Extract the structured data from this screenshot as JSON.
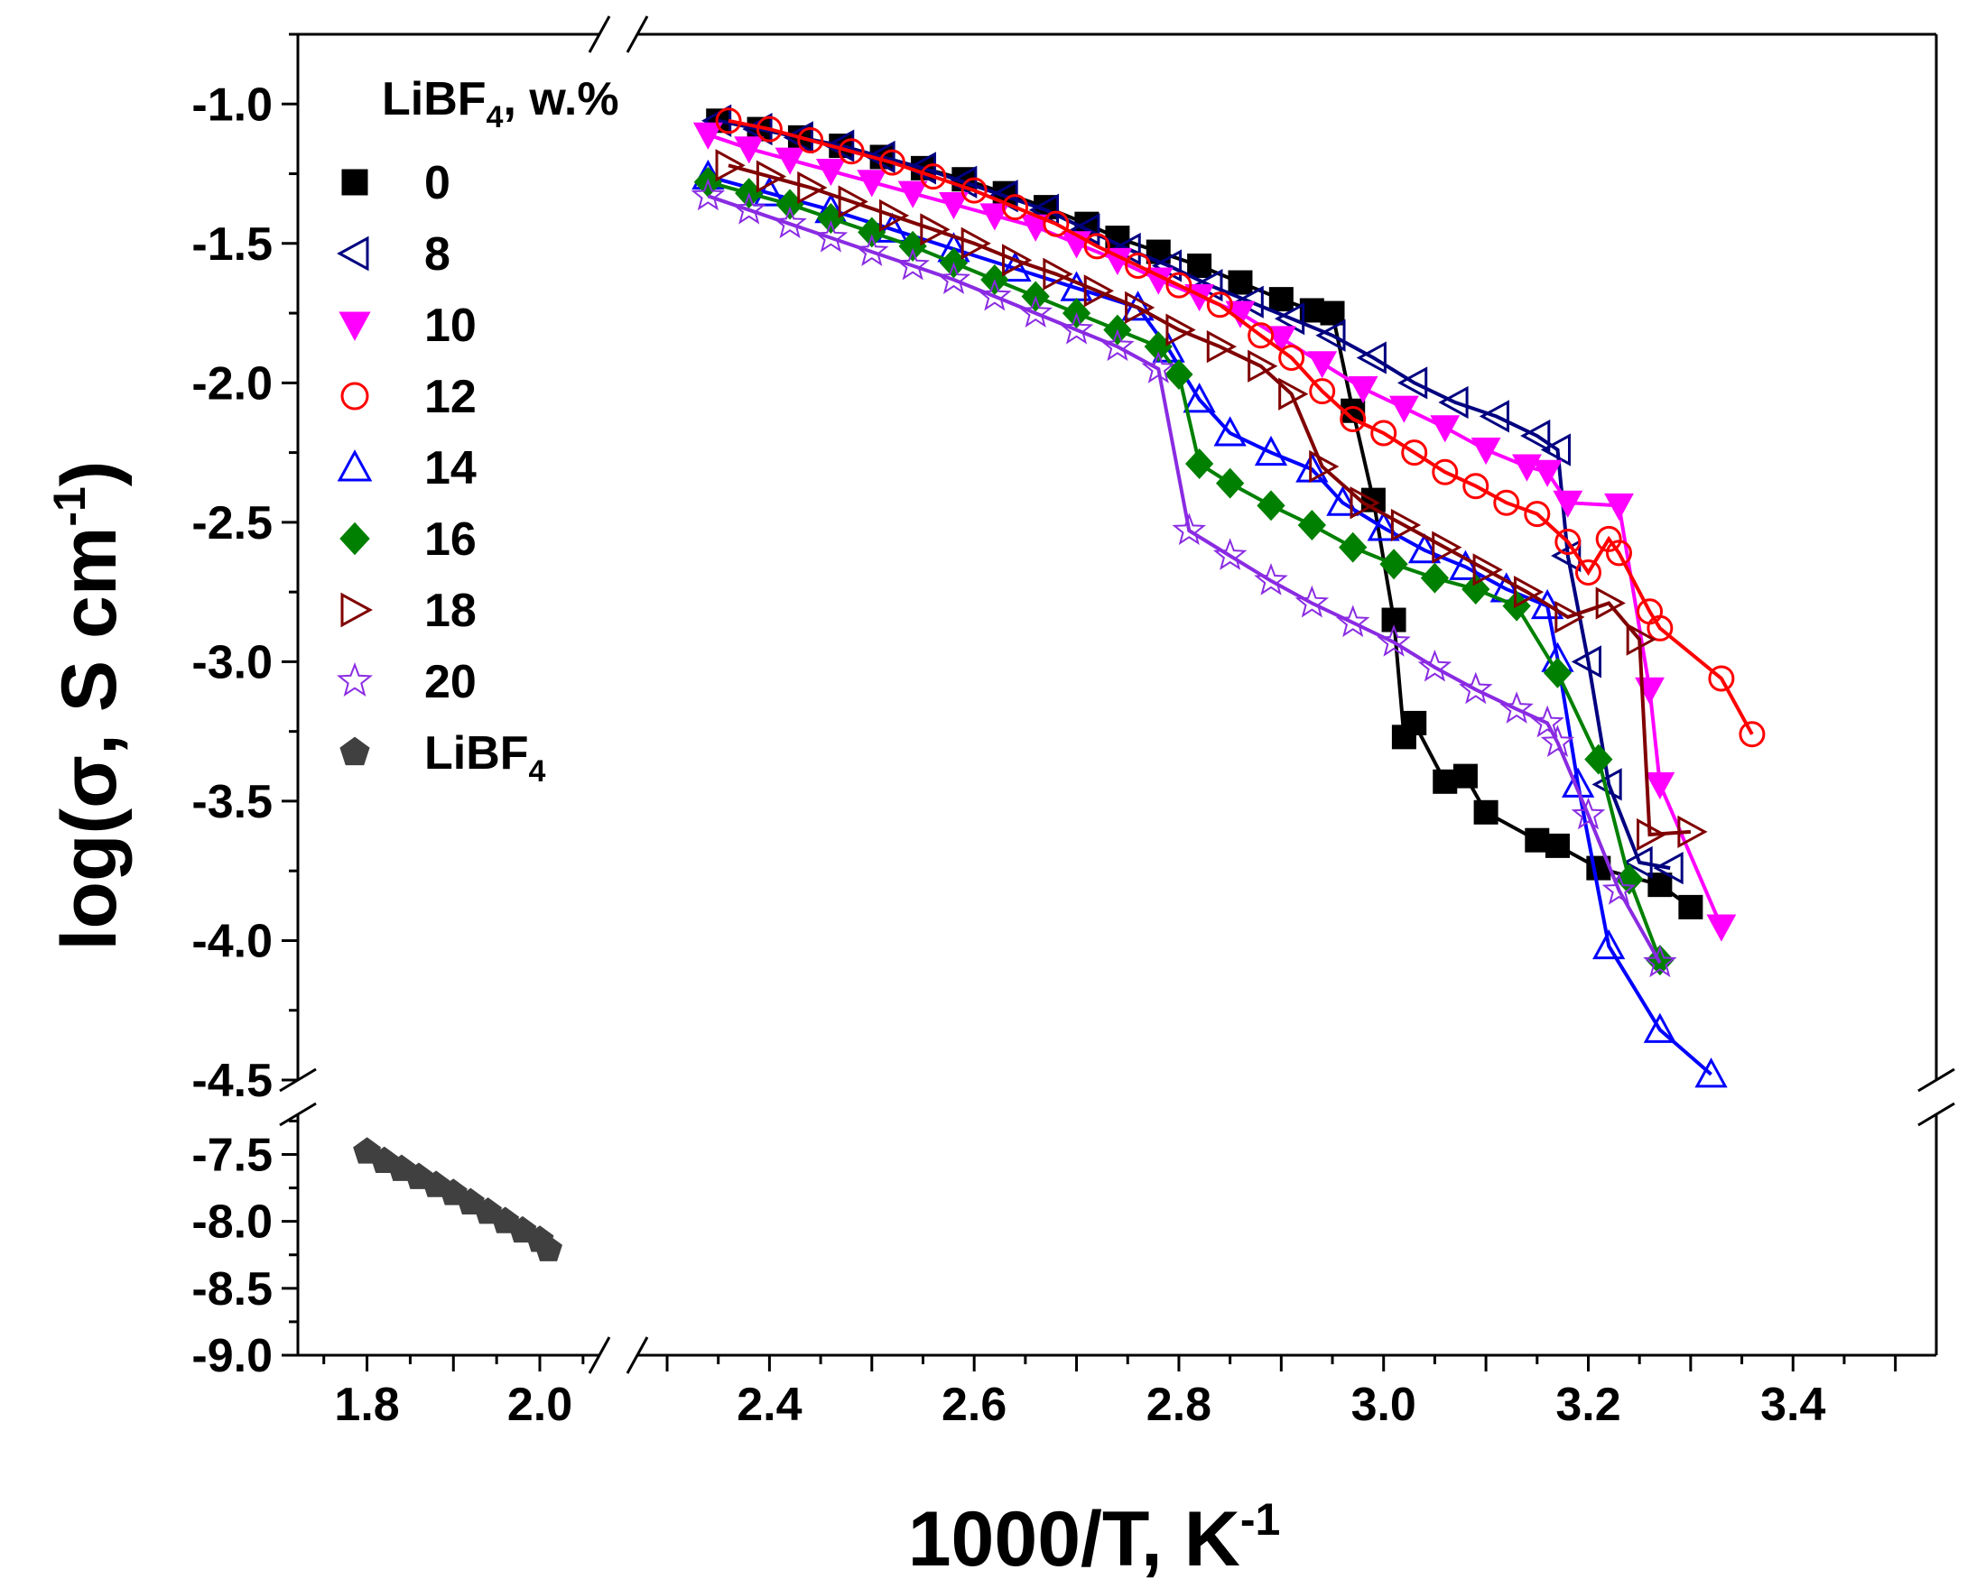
{
  "chart_data": {
    "type": "line",
    "title": "",
    "xlabel": "1000/T, K",
    "xlabel_sup": "-1",
    "ylabel": "log(σ, S cm",
    "ylabel_sup": "-1",
    "ylabel_end": ")",
    "legend_title": "LiBF",
    "legend_title_sub": "4",
    "legend_title_end": ", w.%",
    "legend_position": "top-left",
    "x_axis_break": [
      2.07,
      2.27
    ],
    "y_axis_break": [
      -7.2,
      -4.5
    ],
    "xlim_left": [
      1.72,
      2.07
    ],
    "xlim_right": [
      2.27,
      3.54
    ],
    "ylim_upper": [
      -4.5,
      -0.75
    ],
    "ylim_lower": [
      -9.0,
      -7.2
    ],
    "x_ticks_left": [
      "1.8",
      "2.0"
    ],
    "x_ticks_right": [
      "2.4",
      "2.6",
      "2.8",
      "3.0",
      "3.2",
      "3.4"
    ],
    "y_ticks_upper": [
      "-1.0",
      "-1.5",
      "-2.0",
      "-2.5",
      "-3.0",
      "-3.5",
      "-4.0",
      "-4.5"
    ],
    "y_ticks_lower": [
      "-7.5",
      "-8.0",
      "-8.5",
      "-9.0"
    ],
    "series": [
      {
        "name": "0",
        "color": "#000000",
        "marker": "square",
        "filled": true,
        "points": [
          [
            2.35,
            -1.06
          ],
          [
            2.39,
            -1.09
          ],
          [
            2.43,
            -1.12
          ],
          [
            2.47,
            -1.15
          ],
          [
            2.51,
            -1.19
          ],
          [
            2.55,
            -1.23
          ],
          [
            2.59,
            -1.27
          ],
          [
            2.63,
            -1.32
          ],
          [
            2.67,
            -1.37
          ],
          [
            2.71,
            -1.43
          ],
          [
            2.74,
            -1.48
          ],
          [
            2.78,
            -1.53
          ],
          [
            2.82,
            -1.58
          ],
          [
            2.86,
            -1.64
          ],
          [
            2.9,
            -1.7
          ],
          [
            2.93,
            -1.74
          ],
          [
            2.95,
            -1.75
          ],
          [
            2.97,
            -2.1
          ],
          [
            2.99,
            -2.42
          ],
          [
            3.01,
            -2.85
          ],
          [
            3.02,
            -3.27
          ],
          [
            3.03,
            -3.22
          ],
          [
            3.06,
            -3.43
          ],
          [
            3.08,
            -3.41
          ],
          [
            3.1,
            -3.54
          ],
          [
            3.15,
            -3.64
          ],
          [
            3.17,
            -3.66
          ],
          [
            3.21,
            -3.74
          ],
          [
            3.27,
            -3.8
          ],
          [
            3.3,
            -3.88
          ]
        ]
      },
      {
        "name": "8",
        "color": "#000080",
        "marker": "triangle-left",
        "filled": false,
        "points": [
          [
            2.35,
            -1.06
          ],
          [
            2.39,
            -1.09
          ],
          [
            2.43,
            -1.12
          ],
          [
            2.47,
            -1.15
          ],
          [
            2.51,
            -1.19
          ],
          [
            2.55,
            -1.23
          ],
          [
            2.59,
            -1.28
          ],
          [
            2.63,
            -1.33
          ],
          [
            2.67,
            -1.38
          ],
          [
            2.71,
            -1.45
          ],
          [
            2.75,
            -1.52
          ],
          [
            2.79,
            -1.58
          ],
          [
            2.83,
            -1.65
          ],
          [
            2.87,
            -1.71
          ],
          [
            2.91,
            -1.77
          ],
          [
            2.95,
            -1.83
          ],
          [
            2.99,
            -1.91
          ],
          [
            3.03,
            -2.0
          ],
          [
            3.07,
            -2.07
          ],
          [
            3.11,
            -2.12
          ],
          [
            3.15,
            -2.19
          ],
          [
            3.17,
            -2.24
          ],
          [
            3.18,
            -2.62
          ],
          [
            3.2,
            -3.0
          ],
          [
            3.22,
            -3.44
          ],
          [
            3.25,
            -3.72
          ],
          [
            3.28,
            -3.74
          ]
        ]
      },
      {
        "name": "10",
        "color": "#FF00FF",
        "marker": "triangle-down",
        "filled": true,
        "points": [
          [
            2.34,
            -1.11
          ],
          [
            2.38,
            -1.16
          ],
          [
            2.42,
            -1.2
          ],
          [
            2.46,
            -1.24
          ],
          [
            2.5,
            -1.28
          ],
          [
            2.54,
            -1.32
          ],
          [
            2.58,
            -1.36
          ],
          [
            2.62,
            -1.4
          ],
          [
            2.66,
            -1.44
          ],
          [
            2.7,
            -1.5
          ],
          [
            2.74,
            -1.56
          ],
          [
            2.78,
            -1.63
          ],
          [
            2.82,
            -1.69
          ],
          [
            2.86,
            -1.75
          ],
          [
            2.9,
            -1.84
          ],
          [
            2.94,
            -1.93
          ],
          [
            2.98,
            -2.02
          ],
          [
            3.02,
            -2.09
          ],
          [
            3.06,
            -2.16
          ],
          [
            3.1,
            -2.24
          ],
          [
            3.14,
            -2.3
          ],
          [
            3.16,
            -2.32
          ],
          [
            3.18,
            -2.43
          ],
          [
            3.23,
            -2.44
          ],
          [
            3.26,
            -3.1
          ],
          [
            3.27,
            -3.44
          ],
          [
            3.33,
            -3.95
          ]
        ]
      },
      {
        "name": "12",
        "color": "#FF0000",
        "marker": "circle",
        "filled": false,
        "points": [
          [
            2.36,
            -1.06
          ],
          [
            2.4,
            -1.09
          ],
          [
            2.44,
            -1.13
          ],
          [
            2.48,
            -1.17
          ],
          [
            2.52,
            -1.21
          ],
          [
            2.56,
            -1.26
          ],
          [
            2.6,
            -1.31
          ],
          [
            2.64,
            -1.37
          ],
          [
            2.68,
            -1.43
          ],
          [
            2.72,
            -1.51
          ],
          [
            2.76,
            -1.58
          ],
          [
            2.8,
            -1.65
          ],
          [
            2.84,
            -1.72
          ],
          [
            2.88,
            -1.83
          ],
          [
            2.91,
            -1.91
          ],
          [
            2.94,
            -2.03
          ],
          [
            2.97,
            -2.13
          ],
          [
            3.0,
            -2.18
          ],
          [
            3.03,
            -2.25
          ],
          [
            3.06,
            -2.32
          ],
          [
            3.09,
            -2.37
          ],
          [
            3.12,
            -2.43
          ],
          [
            3.15,
            -2.47
          ],
          [
            3.18,
            -2.57
          ],
          [
            3.2,
            -2.68
          ],
          [
            3.22,
            -2.56
          ],
          [
            3.23,
            -2.61
          ],
          [
            3.26,
            -2.82
          ],
          [
            3.27,
            -2.88
          ],
          [
            3.33,
            -3.06
          ],
          [
            3.36,
            -3.26
          ]
        ]
      },
      {
        "name": "14",
        "color": "#0000FF",
        "marker": "triangle-up",
        "filled": false,
        "points": [
          [
            2.34,
            -1.26
          ],
          [
            2.4,
            -1.32
          ],
          [
            2.46,
            -1.38
          ],
          [
            2.52,
            -1.45
          ],
          [
            2.58,
            -1.52
          ],
          [
            2.64,
            -1.59
          ],
          [
            2.7,
            -1.66
          ],
          [
            2.76,
            -1.73
          ],
          [
            2.79,
            -1.88
          ],
          [
            2.82,
            -2.06
          ],
          [
            2.85,
            -2.18
          ],
          [
            2.89,
            -2.25
          ],
          [
            2.93,
            -2.31
          ],
          [
            2.96,
            -2.43
          ],
          [
            3.0,
            -2.52
          ],
          [
            3.04,
            -2.6
          ],
          [
            3.08,
            -2.66
          ],
          [
            3.12,
            -2.74
          ],
          [
            3.16,
            -2.8
          ],
          [
            3.17,
            -2.99
          ],
          [
            3.19,
            -3.44
          ],
          [
            3.22,
            -4.02
          ],
          [
            3.27,
            -4.32
          ],
          [
            3.32,
            -4.48
          ]
        ]
      },
      {
        "name": "16",
        "color": "#008000",
        "marker": "diamond",
        "filled": true,
        "points": [
          [
            2.34,
            -1.28
          ],
          [
            2.38,
            -1.32
          ],
          [
            2.42,
            -1.36
          ],
          [
            2.46,
            -1.41
          ],
          [
            2.5,
            -1.46
          ],
          [
            2.54,
            -1.51
          ],
          [
            2.58,
            -1.57
          ],
          [
            2.62,
            -1.63
          ],
          [
            2.66,
            -1.69
          ],
          [
            2.7,
            -1.75
          ],
          [
            2.74,
            -1.81
          ],
          [
            2.78,
            -1.87
          ],
          [
            2.8,
            -1.97
          ],
          [
            2.82,
            -2.29
          ],
          [
            2.85,
            -2.36
          ],
          [
            2.89,
            -2.44
          ],
          [
            2.93,
            -2.51
          ],
          [
            2.97,
            -2.59
          ],
          [
            3.01,
            -2.65
          ],
          [
            3.05,
            -2.7
          ],
          [
            3.09,
            -2.74
          ],
          [
            3.13,
            -2.8
          ],
          [
            3.17,
            -3.04
          ],
          [
            3.21,
            -3.35
          ],
          [
            3.24,
            -3.78
          ],
          [
            3.27,
            -4.07
          ]
        ]
      },
      {
        "name": "18",
        "color": "#800000",
        "marker": "triangle-right",
        "filled": false,
        "points": [
          [
            2.36,
            -1.22
          ],
          [
            2.4,
            -1.26
          ],
          [
            2.44,
            -1.3
          ],
          [
            2.48,
            -1.35
          ],
          [
            2.52,
            -1.4
          ],
          [
            2.56,
            -1.45
          ],
          [
            2.6,
            -1.5
          ],
          [
            2.64,
            -1.56
          ],
          [
            2.68,
            -1.61
          ],
          [
            2.72,
            -1.67
          ],
          [
            2.76,
            -1.73
          ],
          [
            2.8,
            -1.81
          ],
          [
            2.84,
            -1.87
          ],
          [
            2.88,
            -1.94
          ],
          [
            2.91,
            -2.04
          ],
          [
            2.94,
            -2.3
          ],
          [
            2.98,
            -2.43
          ],
          [
            3.02,
            -2.51
          ],
          [
            3.06,
            -2.59
          ],
          [
            3.1,
            -2.67
          ],
          [
            3.14,
            -2.75
          ],
          [
            3.18,
            -2.84
          ],
          [
            3.22,
            -2.79
          ],
          [
            3.25,
            -2.92
          ],
          [
            3.26,
            -3.62
          ],
          [
            3.3,
            -3.61
          ]
        ]
      },
      {
        "name": "20",
        "color": "#8A2BE2",
        "marker": "star",
        "filled": false,
        "points": [
          [
            2.34,
            -1.33
          ],
          [
            2.38,
            -1.38
          ],
          [
            2.42,
            -1.43
          ],
          [
            2.46,
            -1.48
          ],
          [
            2.5,
            -1.53
          ],
          [
            2.54,
            -1.58
          ],
          [
            2.58,
            -1.63
          ],
          [
            2.62,
            -1.69
          ],
          [
            2.66,
            -1.75
          ],
          [
            2.7,
            -1.81
          ],
          [
            2.74,
            -1.87
          ],
          [
            2.78,
            -1.95
          ],
          [
            2.81,
            -2.53
          ],
          [
            2.85,
            -2.62
          ],
          [
            2.89,
            -2.71
          ],
          [
            2.93,
            -2.79
          ],
          [
            2.97,
            -2.86
          ],
          [
            3.01,
            -2.93
          ],
          [
            3.05,
            -3.02
          ],
          [
            3.09,
            -3.1
          ],
          [
            3.13,
            -3.17
          ],
          [
            3.16,
            -3.22
          ],
          [
            3.17,
            -3.29
          ],
          [
            3.2,
            -3.55
          ],
          [
            3.23,
            -3.82
          ],
          [
            3.27,
            -4.08
          ]
        ]
      },
      {
        "name": "LiBF",
        "name_sub": "4",
        "color": "#404040",
        "marker": "pentagon",
        "filled": true,
        "points": [
          [
            1.8,
            -7.48
          ],
          [
            1.82,
            -7.55
          ],
          [
            1.84,
            -7.61
          ],
          [
            1.86,
            -7.67
          ],
          [
            1.88,
            -7.73
          ],
          [
            1.9,
            -7.79
          ],
          [
            1.92,
            -7.86
          ],
          [
            1.94,
            -7.93
          ],
          [
            1.96,
            -8.0
          ],
          [
            1.98,
            -8.07
          ],
          [
            2.0,
            -8.14
          ],
          [
            2.01,
            -8.21
          ]
        ]
      }
    ]
  }
}
